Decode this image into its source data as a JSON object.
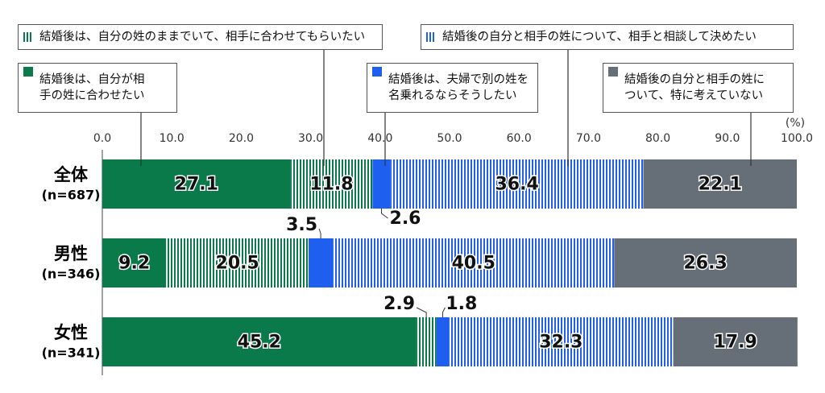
{
  "chart_data": {
    "type": "stacked-bar-horizontal",
    "categories": [
      "全体",
      "男性",
      "女性"
    ],
    "category_notes": [
      "(n=687)",
      "(n=346)",
      "(n=341)"
    ],
    "x_label": "(%)",
    "xlim": [
      0,
      100
    ],
    "xticks": [
      {
        "value": 0,
        "label": "0.0"
      },
      {
        "value": 10,
        "label": "10.0"
      },
      {
        "value": 20,
        "label": "20.0"
      },
      {
        "value": 30,
        "label": "30.0"
      },
      {
        "value": 40,
        "label": "40.0"
      },
      {
        "value": 50,
        "label": "50.0"
      },
      {
        "value": 60,
        "label": "60.0"
      },
      {
        "value": 70,
        "label": "70.0"
      },
      {
        "value": 80,
        "label": "80.0"
      },
      {
        "value": 90,
        "label": "90.0"
      },
      {
        "value": 100,
        "label": "100.0"
      }
    ],
    "series": [
      {
        "name": "結婚後は、自分が相手の姓に合わせたい",
        "color": "#0b7a4b",
        "pattern": "solid",
        "values": [
          27.1,
          9.2,
          45.2
        ]
      },
      {
        "name": "結婚後は、自分の姓のままでいて、相手に合わせてもらいたい",
        "color": "#0b7a4b",
        "pattern": "vertical-stripes",
        "values": [
          11.8,
          20.5,
          2.9
        ]
      },
      {
        "name": "結婚後は、夫婦で別の姓を名乗れるならそうしたい",
        "color": "#1f5ff0",
        "pattern": "solid",
        "values": [
          2.6,
          3.5,
          1.8
        ]
      },
      {
        "name": "結婚後の自分と相手の姓について、相手と相談して決めたい",
        "color": "#1f5ff0",
        "pattern": "vertical-stripes",
        "values": [
          36.4,
          40.5,
          32.3
        ]
      },
      {
        "name": "結婚後の自分と相手の姓について、特に考えていない",
        "color": "#666e78",
        "pattern": "solid",
        "values": [
          22.1,
          26.3,
          17.9
        ]
      }
    ]
  }
}
